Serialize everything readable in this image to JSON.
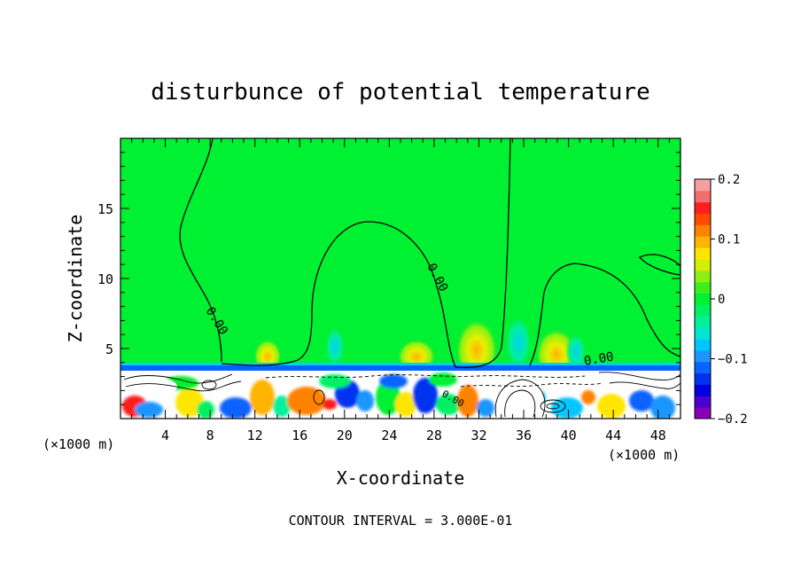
{
  "chart_data": {
    "type": "heatmap",
    "title": "disturbunce of potential temperature",
    "xlabel": "X-coordinate",
    "ylabel": "Z-coordinate",
    "x_unit": "(×1000 m)",
    "x_unit_right": "(×1000 m)",
    "xlim": [
      0,
      50
    ],
    "ylim": [
      0,
      20
    ],
    "x_ticks": [
      4,
      8,
      12,
      16,
      20,
      24,
      28,
      32,
      36,
      40,
      44,
      48
    ],
    "y_ticks": [
      5,
      10,
      15
    ],
    "colorbar": {
      "range": [
        -0.2,
        0.2
      ],
      "tick_values": [
        0.2,
        0.1,
        0,
        -0.1,
        -0.2
      ],
      "tick_labels": [
        "0.2",
        "0.1",
        "0",
        "−0.1",
        "−0.2"
      ],
      "colors": [
        "#8a00b4",
        "#4b00d2",
        "#0000dc",
        "#0032f0",
        "#0a64ff",
        "#1e96ff",
        "#00c8ff",
        "#00e6d2",
        "#00f09b",
        "#00f064",
        "#00f032",
        "#3cf01e",
        "#8cf014",
        "#d2f000",
        "#ffe600",
        "#ffb400",
        "#ff8200",
        "#ff4b00",
        "#ff1e1e",
        "#f06e6e",
        "#f5a0a0"
      ]
    },
    "background_value": 0,
    "contour_labels": [
      "0.00",
      "0.00",
      "0.00",
      "0.00"
    ],
    "contour_interval_text": "CONTOUR INTERVAL = 3.000E-01"
  }
}
